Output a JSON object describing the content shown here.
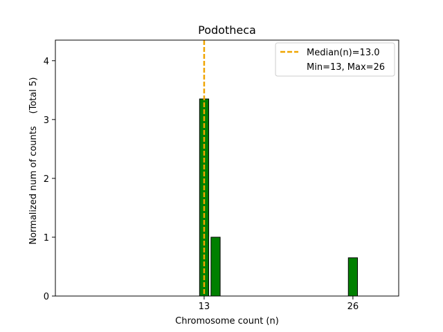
{
  "chart_data": {
    "type": "bar",
    "title": "Podotheca",
    "xlabel": "Chromosome count (n)",
    "ylabel": "Normalized num of counts",
    "ylabel_note": "(Total 5)",
    "xlim": [
      0,
      30
    ],
    "ylim": [
      0,
      4.35
    ],
    "xticks": [
      13,
      26
    ],
    "yticks": [
      0,
      1,
      2,
      3,
      4
    ],
    "bars": [
      {
        "x": 13,
        "value": 3.35
      },
      {
        "x": 14,
        "value": 1.0
      },
      {
        "x": 26,
        "value": 0.65
      }
    ],
    "bar_color": "#008000",
    "median": {
      "x": 13,
      "color": "#f0a500"
    },
    "legend": {
      "placement": "top-right",
      "entries": [
        "Median(n)=13.0",
        "Min=13, Max=26"
      ]
    }
  }
}
